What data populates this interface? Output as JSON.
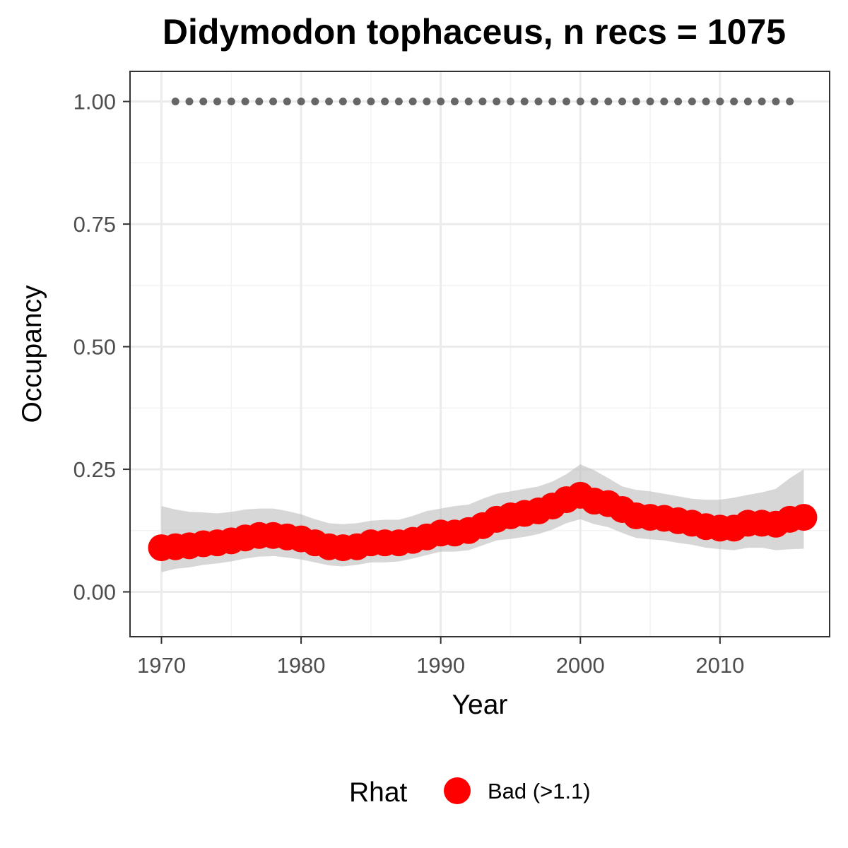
{
  "chart_data": {
    "type": "line",
    "title": "Didymodon tophaceus, n recs = 1075",
    "xlabel": "Year",
    "ylabel": "Occupancy",
    "xlim": [
      1967.8,
      2017.8
    ],
    "ylim": [
      -0.09,
      1.06
    ],
    "xticks": [
      1970,
      1980,
      1990,
      2000,
      2010
    ],
    "xtick_labels": [
      "1970",
      "1980",
      "1990",
      "2000",
      "2010"
    ],
    "yticks": [
      0,
      0.25,
      0.5,
      0.75,
      1
    ],
    "ytick_labels": [
      "0.00",
      "0.25",
      "0.50",
      "0.75",
      "1.00"
    ],
    "grid": true,
    "x": [
      1970,
      1971,
      1972,
      1973,
      1974,
      1975,
      1976,
      1977,
      1978,
      1979,
      1980,
      1981,
      1982,
      1983,
      1984,
      1985,
      1986,
      1987,
      1988,
      1989,
      1990,
      1991,
      1992,
      1993,
      1994,
      1995,
      1996,
      1997,
      1998,
      1999,
      2000,
      2001,
      2002,
      2003,
      2004,
      2005,
      2006,
      2007,
      2008,
      2009,
      2010,
      2011,
      2012,
      2013,
      2014,
      2015,
      2016
    ],
    "series": [
      {
        "role": "estimate",
        "color": "#ff0000",
        "values": [
          0.09,
          0.092,
          0.094,
          0.098,
          0.1,
          0.104,
          0.11,
          0.115,
          0.115,
          0.112,
          0.108,
          0.1,
          0.092,
          0.09,
          0.092,
          0.1,
          0.1,
          0.1,
          0.105,
          0.112,
          0.12,
          0.12,
          0.125,
          0.135,
          0.148,
          0.155,
          0.16,
          0.165,
          0.175,
          0.188,
          0.197,
          0.185,
          0.18,
          0.168,
          0.155,
          0.152,
          0.15,
          0.145,
          0.14,
          0.133,
          0.13,
          0.13,
          0.14,
          0.14,
          0.138,
          0.148,
          0.152
        ]
      },
      {
        "role": "upper bound",
        "values": [
          0.175,
          0.168,
          0.163,
          0.162,
          0.16,
          0.163,
          0.168,
          0.17,
          0.17,
          0.165,
          0.158,
          0.148,
          0.14,
          0.138,
          0.14,
          0.145,
          0.147,
          0.147,
          0.155,
          0.165,
          0.17,
          0.175,
          0.178,
          0.19,
          0.2,
          0.205,
          0.21,
          0.215,
          0.225,
          0.24,
          0.26,
          0.248,
          0.232,
          0.215,
          0.208,
          0.205,
          0.2,
          0.195,
          0.19,
          0.188,
          0.188,
          0.192,
          0.198,
          0.203,
          0.21,
          0.232,
          0.25
        ]
      },
      {
        "role": "lower bound",
        "values": [
          0.04,
          0.047,
          0.05,
          0.055,
          0.058,
          0.062,
          0.068,
          0.072,
          0.073,
          0.07,
          0.066,
          0.06,
          0.054,
          0.052,
          0.055,
          0.06,
          0.06,
          0.062,
          0.068,
          0.075,
          0.082,
          0.082,
          0.085,
          0.095,
          0.105,
          0.108,
          0.112,
          0.118,
          0.127,
          0.14,
          0.148,
          0.138,
          0.132,
          0.12,
          0.11,
          0.107,
          0.105,
          0.1,
          0.096,
          0.09,
          0.087,
          0.085,
          0.09,
          0.09,
          0.085,
          0.087,
          0.088
        ]
      },
      {
        "role": "rhat reference",
        "color": "#666666",
        "x": [
          1971,
          1972,
          1973,
          1974,
          1975,
          1976,
          1977,
          1978,
          1979,
          1980,
          1981,
          1982,
          1983,
          1984,
          1985,
          1986,
          1987,
          1988,
          1989,
          1990,
          1991,
          1992,
          1993,
          1994,
          1995,
          1996,
          1997,
          1998,
          1999,
          2000,
          2001,
          2002,
          2003,
          2004,
          2005,
          2006,
          2007,
          2008,
          2009,
          2010,
          2011,
          2012,
          2013,
          2014,
          2015
        ],
        "values": [
          1,
          1,
          1,
          1,
          1,
          1,
          1,
          1,
          1,
          1,
          1,
          1,
          1,
          1,
          1,
          1,
          1,
          1,
          1,
          1,
          1,
          1,
          1,
          1,
          1,
          1,
          1,
          1,
          1,
          1,
          1,
          1,
          1,
          1,
          1,
          1,
          1,
          1,
          1,
          1,
          1,
          1,
          1,
          1,
          1
        ]
      }
    ],
    "legend": {
      "placement": "bottom",
      "title": "Rhat",
      "entries": [
        {
          "label": "Bad (>1.1)",
          "color": "#ff0000"
        }
      ]
    }
  }
}
